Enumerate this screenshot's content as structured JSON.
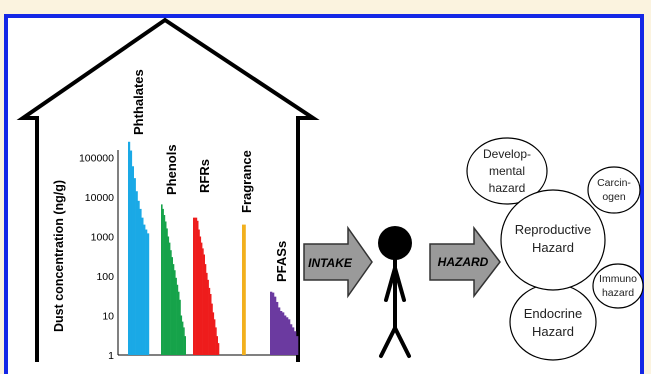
{
  "colors": {
    "phthalates": "#1aa9e6",
    "phenols": "#16a34a",
    "rfrs": "#ee1c1c",
    "fragrance": "#f2b01e",
    "pfass": "#6b3aa0",
    "arrow_fill": "#9a9a9a",
    "frame": "#1427e6"
  },
  "house": {
    "y_axis_label": "Dust concentration (ng/g)",
    "y_ticks": [
      "100000",
      "10000",
      "1000",
      "100",
      "10",
      "1"
    ]
  },
  "groups": [
    {
      "key": "phthalates",
      "label": "Phthalates",
      "values": [
        250000,
        150000,
        60000,
        30000,
        14000,
        8000,
        5000,
        3000,
        2000,
        1500,
        1200
      ]
    },
    {
      "key": "phenols",
      "label": "Phenols",
      "values": [
        6500,
        5000,
        3500,
        2400,
        1600,
        1000,
        700,
        450,
        300,
        200,
        140,
        90,
        60,
        40,
        25,
        10,
        7,
        5,
        3
      ]
    },
    {
      "key": "rfrs",
      "label": "RFRs",
      "values": [
        3000,
        3000,
        3000,
        2500,
        1500,
        1000,
        700,
        500,
        350,
        200,
        120,
        80,
        50,
        35,
        20,
        12,
        8,
        5,
        3,
        2
      ]
    },
    {
      "key": "fragrance",
      "label": "Fragrance",
      "values": [
        2000
      ]
    },
    {
      "key": "pfass",
      "label": "PFASs",
      "values": [
        40,
        38,
        30,
        22,
        16,
        13,
        12,
        10,
        9,
        8,
        6,
        5,
        4,
        3
      ]
    }
  ],
  "arrows": {
    "intake": "INTAKE",
    "hazard": "HAZARD"
  },
  "hazards": {
    "developmental": [
      "Develop-",
      "mental",
      "hazard"
    ],
    "carcinogen": [
      "Carcin-",
      "ogen"
    ],
    "reproductive": [
      "Reproductive",
      "Hazard"
    ],
    "immuno": [
      "Immuno",
      "hazard"
    ],
    "endocrine": [
      "Endocrine",
      "Hazard"
    ]
  }
}
